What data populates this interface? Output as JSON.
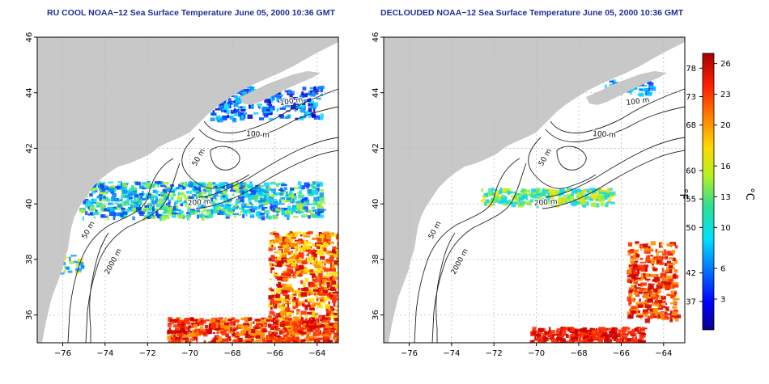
{
  "maps": [
    {
      "title": "RU COOL NOAA−12 Sea Surface Temperature June 05, 2000 10:36 GMT",
      "contour_labels": [
        "100 m",
        "100 m",
        "50 m",
        "200 m",
        "50 m",
        "2000 m"
      ]
    },
    {
      "title": "DECLOUDED NOAA−12 Sea Surface Temperature June 05, 2000 10:36 GMT",
      "contour_labels": [
        "100 m",
        "100 m",
        "50 m",
        "200 m",
        "50 m",
        "2000 m"
      ]
    }
  ],
  "axes": {
    "lon_ticks": [
      "−76",
      "−74",
      "−72",
      "−70",
      "−68",
      "−66",
      "−64"
    ],
    "lat_ticks": [
      "36",
      "38",
      "40",
      "42",
      "44",
      "46"
    ],
    "lon_range": [
      -77.2,
      -63.0
    ],
    "lat_range": [
      35.0,
      46.0
    ]
  },
  "colorbar": {
    "fahrenheit_label": "°F",
    "celsius_label": "°C",
    "fahrenheit_ticks": [
      "78",
      "73",
      "68",
      "60",
      "55",
      "50",
      "42",
      "37"
    ],
    "celsius_ticks": [
      "26",
      "23",
      "20",
      "16",
      "13",
      "10",
      "6",
      "3"
    ],
    "range_c": [
      0,
      27
    ]
  },
  "colors": {
    "land": "#c8c8c8",
    "ocean": "#ffffff",
    "title": "#1f2f9a",
    "contour": "#222222",
    "grid": "#bbbbbb"
  }
}
